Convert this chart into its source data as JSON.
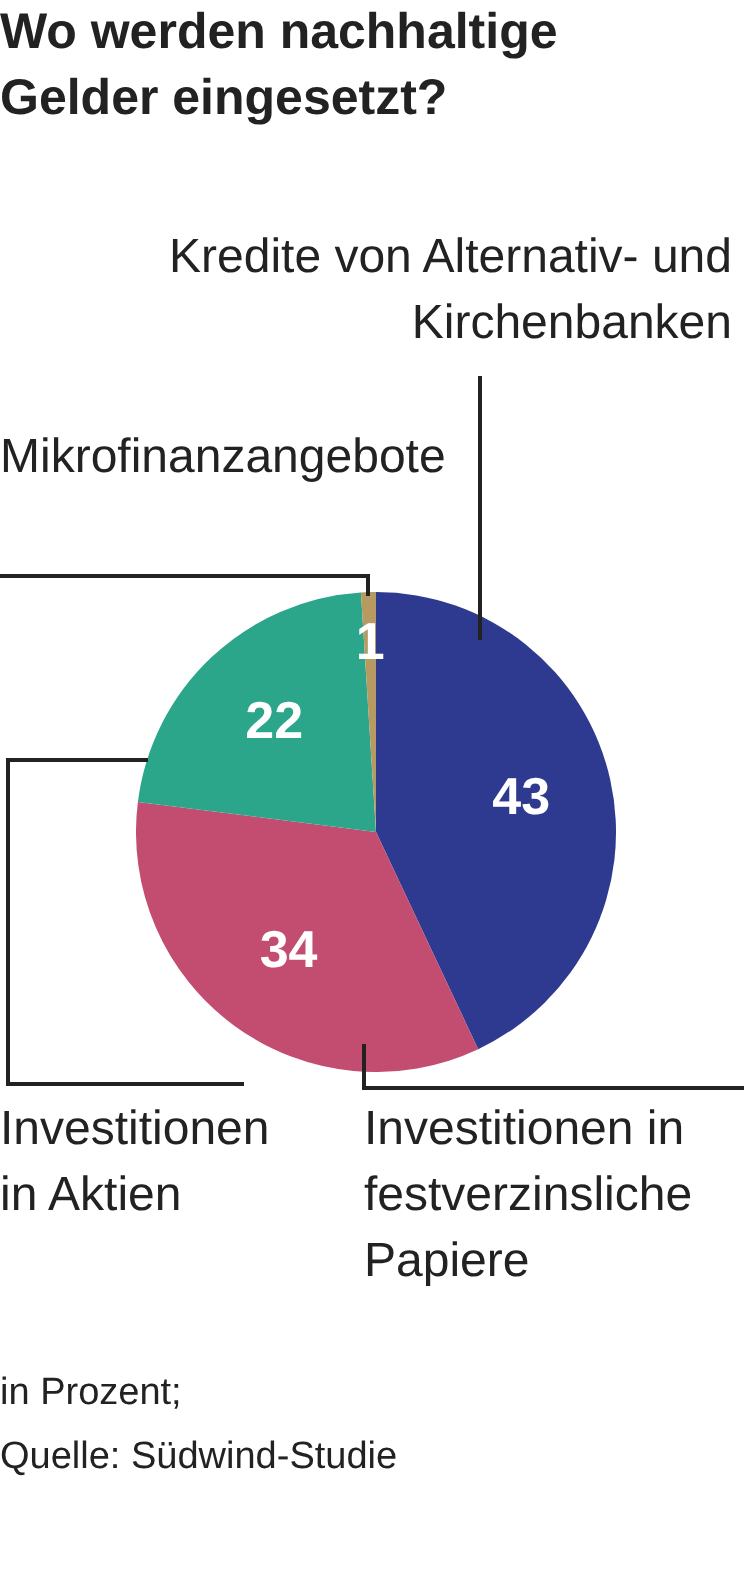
{
  "chart_data": {
    "type": "pie",
    "title": "Wo werden nachhaltige Gelder eingesetzt?",
    "categories": [
      "Kredite von Alternativ- und Kirchenbanken",
      "Investitionen in festverzinsliche Papiere",
      "Investitionen in Aktien",
      "Mikrofinanzangebote"
    ],
    "values": [
      43,
      34,
      22,
      1
    ],
    "colors": [
      "#2e3990",
      "#c24d70",
      "#2ca68a",
      "#b79a62"
    ],
    "data_labels": true,
    "annotations": [
      "in Prozent;",
      "Quelle: Südwind-Studie"
    ]
  }
}
